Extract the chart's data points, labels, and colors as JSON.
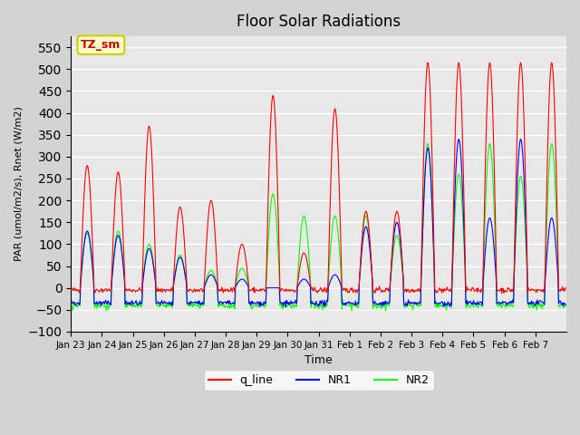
{
  "title": "Floor Solar Radiations",
  "xlabel": "Time",
  "ylabel": "PAR (umol/m2/s), Rnet (W/m2)",
  "ylim": [
    -100,
    575
  ],
  "yticks": [
    -100,
    -50,
    0,
    50,
    100,
    150,
    200,
    250,
    300,
    350,
    400,
    450,
    500,
    550
  ],
  "xtick_labels": [
    "Jan 23",
    "Jan 24",
    "Jan 25",
    "Jan 26",
    "Jan 27",
    "Jan 28",
    "Jan 29",
    "Jan 30",
    "Jan 31",
    "Feb 1",
    "Feb 2",
    "Feb 3",
    "Feb 4",
    "Feb 5",
    "Feb 6",
    "Feb 7"
  ],
  "annotation_text": "TZ_sm",
  "annotation_bg": "#FFFFCC",
  "annotation_border": "#CCCC00",
  "annotation_text_color": "#CC0000",
  "colors": {
    "q_line": "#FF0000",
    "NR1": "#0000FF",
    "NR2": "#00FF00"
  },
  "bg_color": "#E8E8E8",
  "grid_color": "#FFFFFF",
  "legend_labels": [
    "q_line",
    "NR1",
    "NR2"
  ],
  "n_days": 16,
  "pts_per_day": 48,
  "day_peaks_q": [
    280,
    265,
    370,
    185,
    200,
    100,
    440,
    80,
    410,
    175,
    175,
    515,
    515,
    515,
    515,
    515
  ],
  "day_peaks_nr1": [
    130,
    120,
    90,
    70,
    30,
    20,
    0,
    20,
    30,
    140,
    150,
    320,
    340,
    160,
    340,
    160
  ],
  "day_peaks_nr2": [
    125,
    130,
    100,
    75,
    40,
    45,
    215,
    165,
    165,
    165,
    120,
    330,
    260,
    330,
    255,
    330
  ]
}
